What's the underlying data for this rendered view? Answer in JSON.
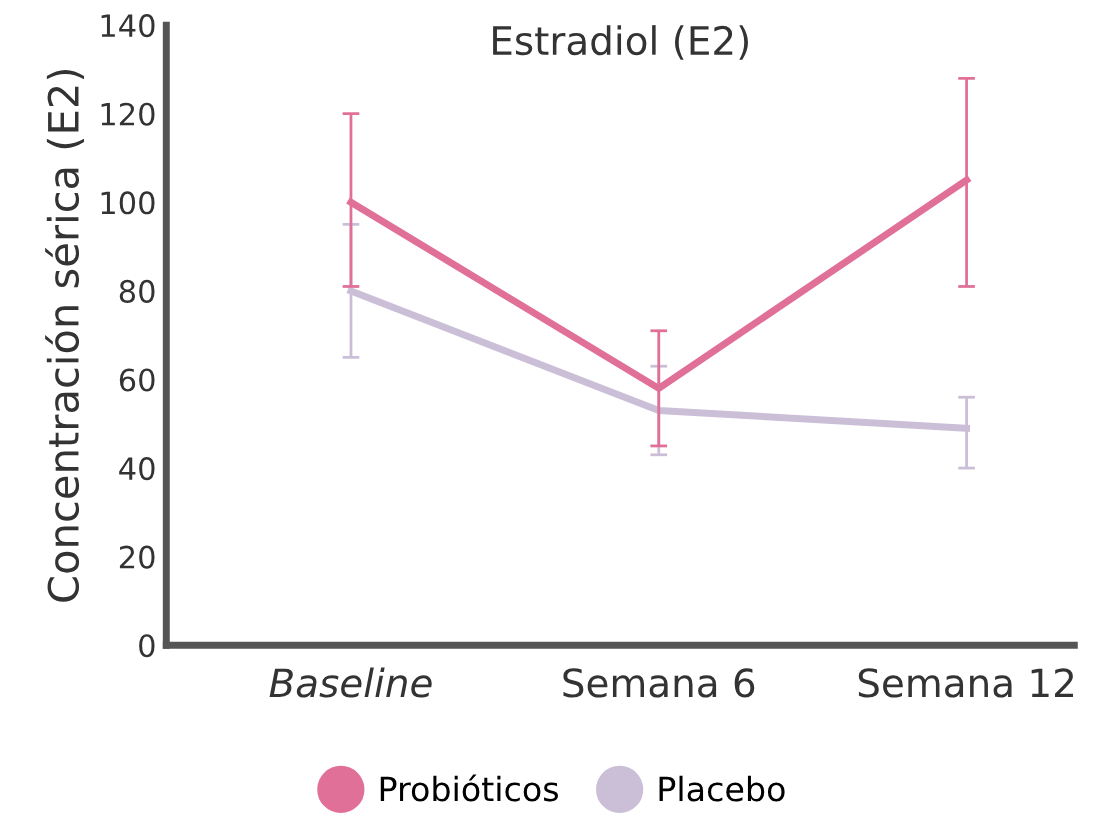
{
  "chart_data": {
    "type": "line",
    "title": "Estradiol (E2)",
    "ylabel": "Concentración sérica (E2)",
    "categories": [
      "Baseline",
      "Semana 6",
      "Semana 12"
    ],
    "series": [
      {
        "name": "Probióticos",
        "color": "#e07098",
        "values": [
          100,
          58,
          105
        ],
        "errors": [
          [
            81,
            120
          ],
          [
            45,
            71
          ],
          [
            81,
            128
          ]
        ]
      },
      {
        "name": "Placebo",
        "color": "#cbbfd8",
        "values": [
          80,
          53,
          49
        ],
        "errors": [
          [
            65,
            95
          ],
          [
            43,
            63
          ],
          [
            40,
            56
          ]
        ]
      }
    ],
    "ylim": [
      0,
      140
    ],
    "yticks": [
      0,
      20,
      40,
      60,
      80,
      100,
      120,
      140
    ],
    "grid": false,
    "legend": "bottom",
    "marker": "none",
    "line_style": "solid"
  }
}
